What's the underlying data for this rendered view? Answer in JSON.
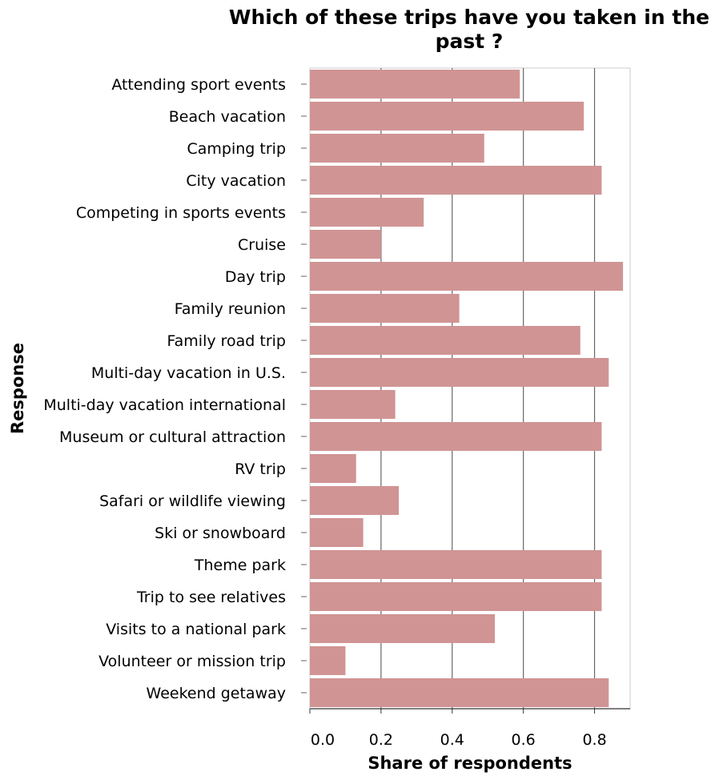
{
  "chart_data": {
    "type": "bar",
    "orientation": "horizontal",
    "title_lines": [
      "Which of these trips have you taken in the",
      "past ?"
    ],
    "xlabel": "Share of respondents",
    "ylabel": "Response",
    "xlim": [
      0,
      0.9
    ],
    "xticks": [
      0.0,
      0.2,
      0.4,
      0.6,
      0.8
    ],
    "xtick_labels": [
      "0.0",
      "0.2",
      "0.4",
      "0.6",
      "0.8"
    ],
    "grid": "vertical",
    "bar_color": "#d09494",
    "categories": [
      "Attending sport events",
      "Beach vacation",
      "Camping trip",
      "City vacation",
      "Competing in sports events",
      "Cruise",
      "Day trip",
      "Family reunion",
      "Family road trip",
      "Multi-day vacation in U.S.",
      "Multi-day vacation international",
      "Museum or cultural attraction",
      "RV trip",
      "Safari or wildlife viewing",
      "Ski or snowboard",
      "Theme park",
      "Trip to see relatives",
      "Visits to a national park",
      "Volunteer or mission trip",
      "Weekend getaway"
    ],
    "values": [
      0.59,
      0.77,
      0.49,
      0.82,
      0.32,
      0.2,
      0.88,
      0.42,
      0.76,
      0.84,
      0.24,
      0.82,
      0.13,
      0.25,
      0.15,
      0.82,
      0.82,
      0.52,
      0.1,
      0.84
    ]
  }
}
